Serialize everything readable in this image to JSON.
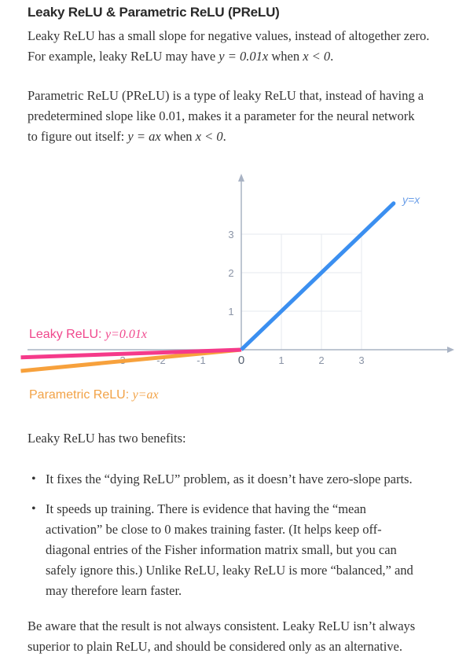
{
  "heading": "Leaky ReLU & Parametric ReLU (PReLU)",
  "intro": {
    "line1": "Leaky ReLU has a small slope for negative values, instead of altogether zero.",
    "line2_pre": "For example, leaky ReLU may have ",
    "line2_eq": "y = 0.01x",
    "line2_mid": " when ",
    "line2_cond": "x < 0",
    "line2_end": "."
  },
  "prelu": {
    "line1": "Parametric ReLU (PReLU) is a type of leaky ReLU that, instead of having a",
    "line2": "predetermined slope like 0.01, makes it a parameter for the neural network",
    "line3_pre": "to figure out itself: ",
    "line3_eq": "y = ax",
    "line3_mid": " when ",
    "line3_cond": "x < 0",
    "line3_end": "."
  },
  "chart_data": {
    "type": "line",
    "x_ticks": [
      "-3",
      "-2",
      "-1",
      "0",
      "1",
      "2",
      "3"
    ],
    "y_ticks": [
      "1",
      "2",
      "3"
    ],
    "series": [
      {
        "name": "y=x",
        "color": "#3b8ff0",
        "x": [
          0,
          3.8
        ],
        "y": [
          0,
          3.8
        ]
      },
      {
        "name": "Leaky ReLU: y=0.01x",
        "color": "#f53a8a",
        "x": [
          -5.5,
          0
        ],
        "y": [
          -0.2,
          0
        ]
      },
      {
        "name": "Parametric ReLU: y=ax",
        "color": "#f7a13c",
        "x": [
          -5.5,
          0
        ],
        "y": [
          -0.55,
          0
        ]
      }
    ],
    "labels": {
      "identity": "y=x",
      "leaky_prefix": "Leaky ReLU: ",
      "leaky_eq": "y=0.01x",
      "param_prefix": "Parametric ReLU: ",
      "param_eq": "y=ax"
    },
    "grid": true
  },
  "benefits_intro": "Leaky ReLU has two benefits:",
  "bullets": [
    [
      "It fixes the “dying ReLU” problem, as it doesn’t have zero-slope parts."
    ],
    [
      "It speeds up training. There is evidence that having the “mean",
      "activation” be close to 0 makes training faster. (It helps keep off-",
      "diagonal entries of the Fisher information matrix small, but you can",
      "safely ignore this.) Unlike ReLU, leaky ReLU is more “balanced,” and",
      "may therefore learn faster."
    ]
  ],
  "conclusion": [
    "Be aware that the result is not always consistent. Leaky ReLU isn’t always",
    "superior to plain ReLU, and should be considered only as an alternative."
  ],
  "bullet_glyph": "•"
}
